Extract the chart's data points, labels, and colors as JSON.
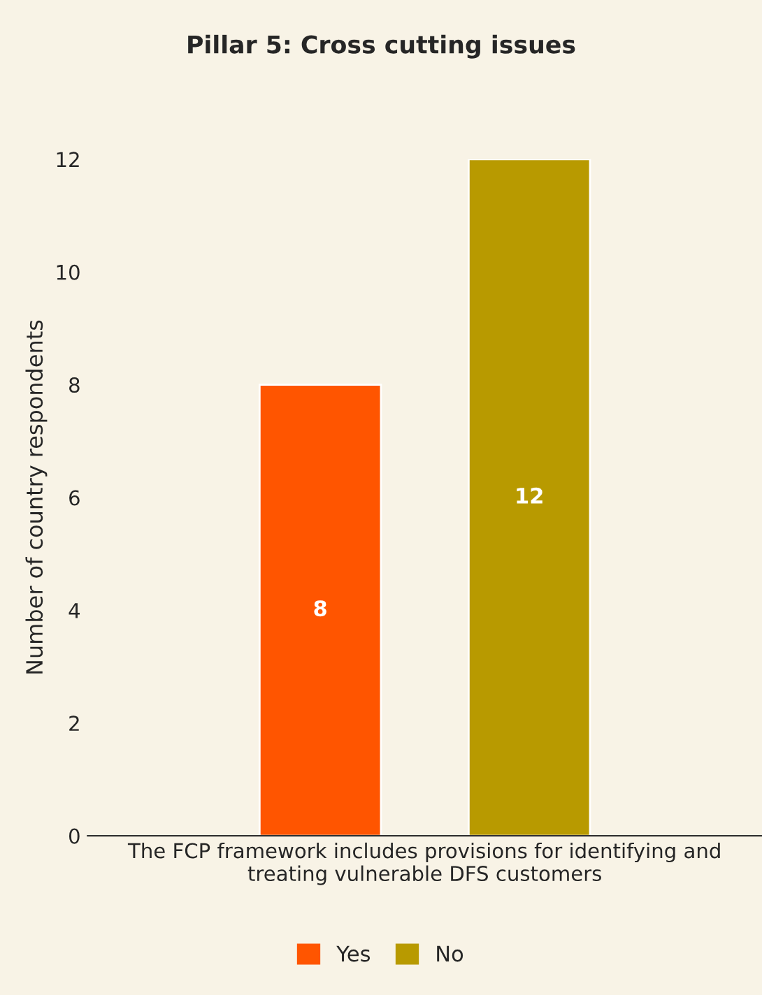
{
  "chart_data": {
    "type": "bar",
    "title": "Pillar 5: Cross cutting issues",
    "ylabel": "Number of country respondents",
    "categories": [
      "The FCP framework includes provisions for identifying and treating vulnerable DFS customers"
    ],
    "series": [
      {
        "name": "Yes",
        "color": "#ff5500",
        "values": [
          8
        ]
      },
      {
        "name": "No",
        "color": "#b89a00",
        "values": [
          12
        ]
      }
    ],
    "ylim": [
      0,
      12
    ],
    "yticks": [
      0,
      2,
      4,
      6,
      8,
      10,
      12
    ],
    "grid": false,
    "legend": "bottom",
    "data_labels": true
  }
}
